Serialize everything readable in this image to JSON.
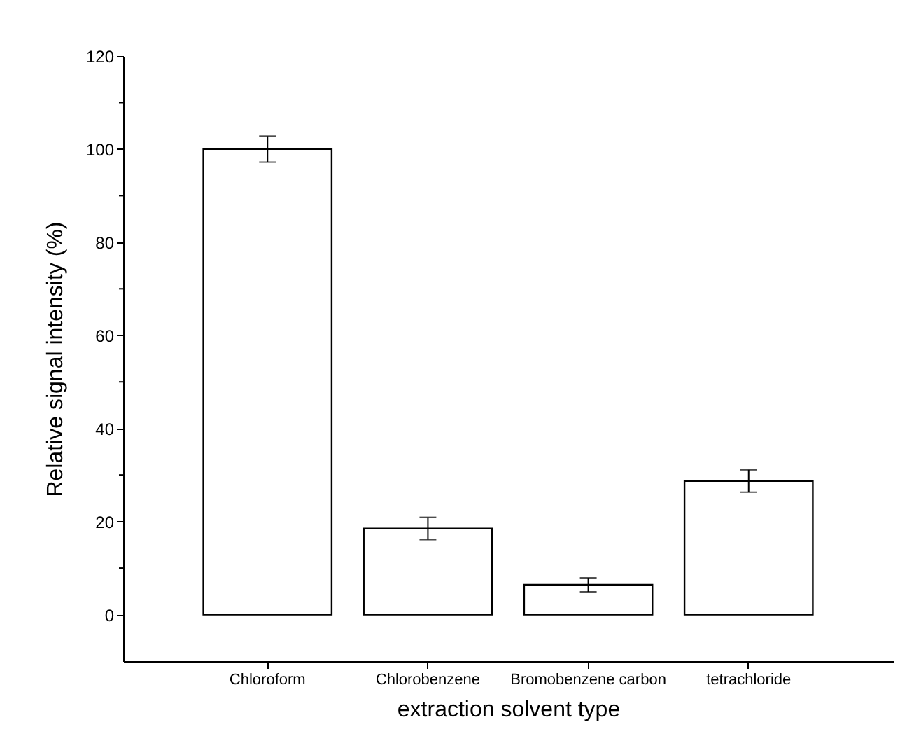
{
  "chart_data": {
    "type": "bar",
    "xlabel": "extraction solvent type",
    "ylabel": "Relative signal intensity (%)",
    "categories": [
      "Chloroform",
      "Chlorobenzene",
      "Bromobenzene carbon",
      "tetrachloride"
    ],
    "values": [
      100,
      18.5,
      6.4,
      28.7
    ],
    "errors": [
      2.8,
      2.4,
      1.5,
      2.4
    ],
    "color": "#ffffff",
    "ylim": [
      -10,
      120
    ],
    "yticks": [
      0,
      {
        "value": 10,
        "label": null
      },
      20,
      {
        "value": 30,
        "label": null
      },
      40,
      {
        "value": 50,
        "label": null
      },
      60,
      {
        "value": 70,
        "label": null
      },
      80,
      {
        "value": 90,
        "label": null
      },
      100,
      {
        "value": 110,
        "label": null
      },
      120
    ],
    "grid": false
  }
}
